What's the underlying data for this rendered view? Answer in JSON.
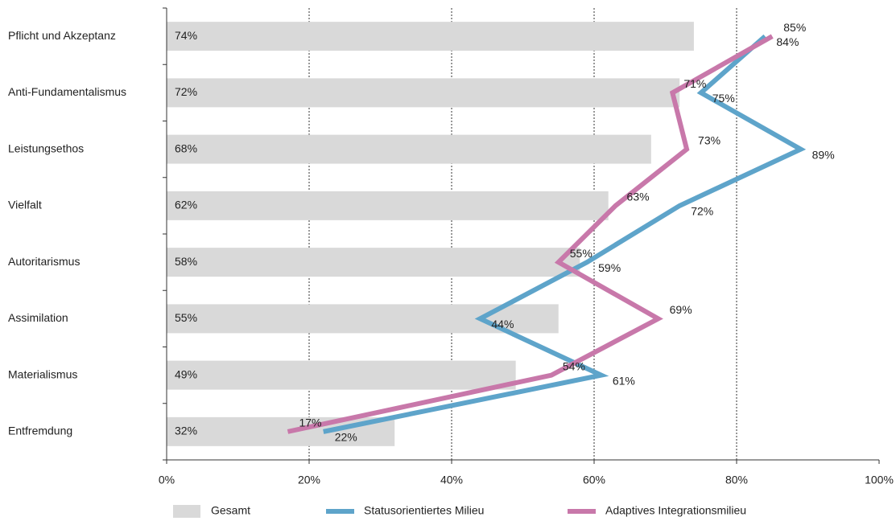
{
  "chart_data": {
    "type": "bar_line",
    "orientation": "horizontal",
    "categories": [
      "Pflicht und Akzeptanz",
      "Anti-Fundamentalismus",
      "Leistungsethos",
      "Vielfalt",
      "Autoritarismus",
      "Assimilation",
      "Materialismus",
      "Entfremdung"
    ],
    "series": [
      {
        "name": "Gesamt",
        "type": "bar",
        "color": "#d9d9d9",
        "values": [
          74,
          72,
          68,
          62,
          58,
          55,
          49,
          32
        ],
        "value_labels": [
          "74%",
          "72%",
          "68%",
          "62%",
          "58%",
          "55%",
          "49%",
          "32%"
        ]
      },
      {
        "name": "Statusorientiertes Milieu",
        "type": "line",
        "color": "#5ea4ca",
        "label_color": "#2f78b4",
        "values": [
          84,
          75,
          89,
          72,
          59,
          44,
          61,
          22
        ],
        "value_labels": [
          "84%",
          "75%",
          "89%",
          "72%",
          "59%",
          "44%",
          "61%",
          "22%"
        ]
      },
      {
        "name": "Adaptives Integrationsmilieu",
        "type": "line",
        "color": "#c878aa",
        "label_color": "#cf6fa2",
        "values": [
          85,
          71,
          73,
          63,
          55,
          69,
          54,
          17
        ],
        "value_labels": [
          "85%",
          "71%",
          "73%",
          "63%",
          "55%",
          "69%",
          "54%",
          "17%"
        ]
      }
    ],
    "xlim": [
      0,
      100
    ],
    "xticks": [
      {
        "value": 0,
        "label": "0%"
      },
      {
        "value": 20,
        "label": "20%"
      },
      {
        "value": 40,
        "label": "40%"
      },
      {
        "value": 60,
        "label": "60%"
      },
      {
        "value": 80,
        "label": "80%"
      },
      {
        "value": 100,
        "label": "100%"
      }
    ],
    "grid": true,
    "legend": "bottom"
  }
}
